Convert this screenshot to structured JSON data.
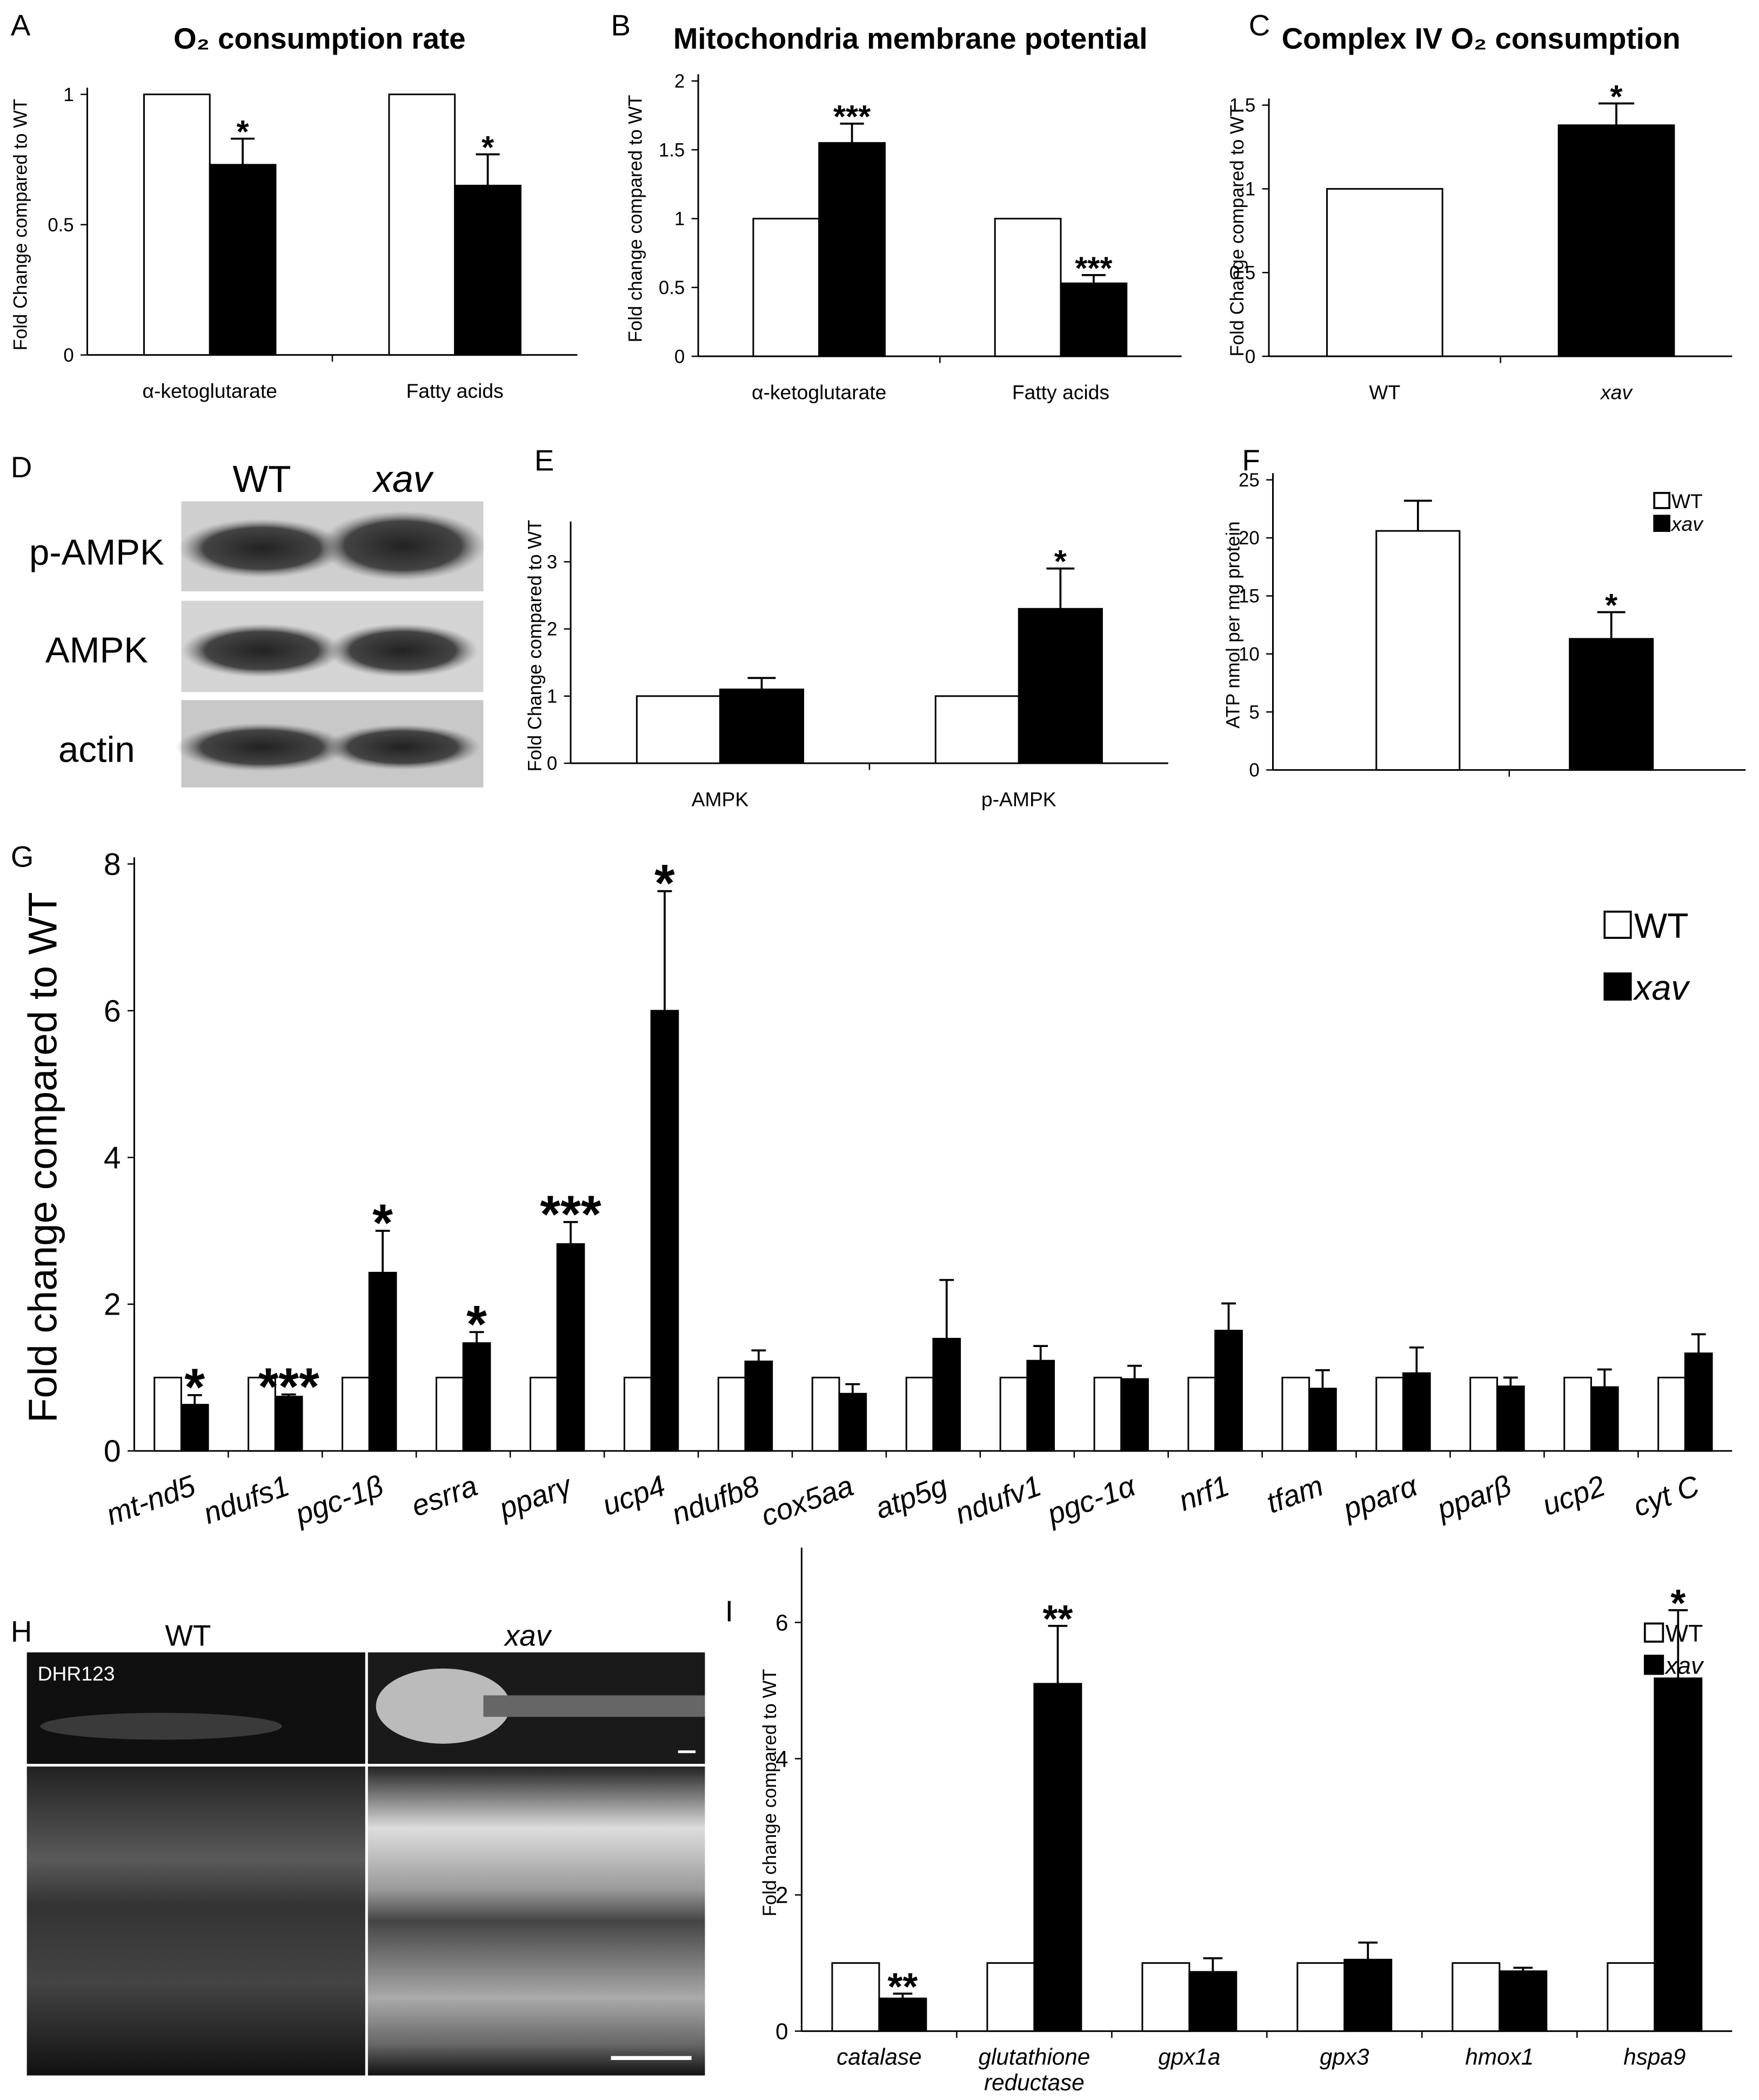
{
  "chart_data": [
    {
      "type": "bar",
      "panel": "A",
      "title": "O₂ consumption rate",
      "y_label": "Fold Change compared to WT",
      "categories": [
        "α-ketoglutarate",
        "Fatty acids"
      ],
      "series": [
        {
          "color": "#ffffff",
          "values": [
            1,
            1
          ]
        },
        {
          "color": "#000000",
          "values": [
            0.73,
            0.65
          ],
          "errors": [
            0.1,
            0.12
          ],
          "annotations": [
            "*",
            "*"
          ]
        }
      ],
      "ylim": [
        0,
        1
      ],
      "yticks": [
        0,
        0.5,
        1
      ]
    },
    {
      "type": "bar",
      "panel": "B",
      "title": "Mitochondria membrane potential",
      "y_label": "Fold change compared to WT",
      "categories": [
        "α-ketoglutarate",
        "Fatty acids"
      ],
      "series": [
        {
          "color": "#ffffff",
          "values": [
            1,
            1
          ]
        },
        {
          "color": "#000000",
          "values": [
            1.55,
            0.53
          ],
          "errors": [
            0.14,
            0.06
          ],
          "annotations": [
            "***",
            "***"
          ]
        }
      ],
      "ylim": [
        0,
        2
      ],
      "yticks": [
        0,
        0.5,
        1,
        1.5,
        2
      ]
    },
    {
      "type": "bar",
      "panel": "C",
      "title": "Complex IV O₂ consumption",
      "y_label": "Fold Change compared to WT",
      "categories": [
        "WT",
        "xav"
      ],
      "values": [
        1,
        1.38
      ],
      "colors": [
        "#ffffff",
        "#000000"
      ],
      "errors": [
        null,
        0.13
      ],
      "annotations": [
        null,
        "*"
      ],
      "ylim": [
        0,
        1.5
      ],
      "yticks": [
        0,
        0.5,
        1,
        1.5
      ]
    },
    {
      "type": "bar",
      "panel": "E",
      "y_label": "Fold Change compared to WT",
      "categories": [
        "AMPK",
        "p-AMPK"
      ],
      "series": [
        {
          "color": "#ffffff",
          "values": [
            1,
            1
          ]
        },
        {
          "color": "#000000",
          "values": [
            1.1,
            2.3
          ],
          "errors": [
            0.17,
            0.6
          ],
          "annotations": [
            null,
            "*"
          ]
        }
      ],
      "ylim": [
        0,
        3.5
      ],
      "yticks": [
        0,
        1,
        2,
        3
      ]
    },
    {
      "type": "bar",
      "panel": "F",
      "y_label": "ATP  nmol per mg protein",
      "categories": [
        null,
        null
      ],
      "series": [
        {
          "name": "WT",
          "color": "#ffffff",
          "values": [
            20.6,
            null
          ],
          "errors": [
            2.6,
            null
          ]
        },
        {
          "name": "xav",
          "color": "#000000",
          "values": [
            null,
            11.3
          ],
          "errors": [
            null,
            2.3
          ],
          "annotations": [
            null,
            "*"
          ]
        }
      ],
      "ylim": [
        0,
        25
      ],
      "yticks": [
        0,
        5,
        10,
        15,
        20,
        25
      ],
      "legend": "upper right"
    },
    {
      "type": "bar",
      "panel": "G",
      "y_label": "Fold change compared to WT",
      "categories": [
        "mt-nd5",
        "ndufs1",
        "pgc-1β",
        "esrra",
        "pparγ",
        "ucp4",
        "ndufb8",
        "cox5aa",
        "atp5g",
        "ndufv1",
        "pgc-1α",
        "nrf1",
        "tfam",
        "pparα",
        "pparβ",
        "ucp2",
        "cyt C"
      ],
      "series": [
        {
          "name": "WT",
          "color": "#ffffff",
          "values": [
            1,
            1,
            1,
            1,
            1,
            1,
            1,
            1,
            1,
            1,
            1,
            1,
            1,
            1,
            1,
            1,
            1
          ]
        },
        {
          "name": "xav",
          "color": "#000000",
          "values": [
            0.63,
            0.74,
            2.43,
            1.47,
            2.82,
            6.0,
            1.22,
            0.78,
            1.53,
            1.23,
            0.98,
            1.64,
            0.85,
            1.06,
            0.88,
            0.87,
            1.33
          ],
          "errors": [
            0.13,
            0.03,
            0.57,
            0.15,
            0.3,
            1.63,
            0.15,
            0.13,
            0.8,
            0.2,
            0.18,
            0.37,
            0.25,
            0.35,
            0.12,
            0.24,
            0.26
          ],
          "annotations": [
            "*",
            "***",
            "*",
            "*",
            "***",
            "*",
            null,
            null,
            null,
            null,
            null,
            null,
            null,
            null,
            null,
            null,
            null
          ]
        }
      ],
      "ylim": [
        0,
        8
      ],
      "yticks": [
        0,
        2,
        4,
        6,
        8
      ],
      "legend": "upper right"
    },
    {
      "type": "bar",
      "panel": "I",
      "y_label": "Fold change compared to WT",
      "categories": [
        "catalase",
        "glutathione reductase",
        "gpx1a",
        "gpx3",
        "hmox1",
        "hspa9"
      ],
      "series": [
        {
          "name": "WT",
          "color": "#ffffff",
          "values": [
            1,
            1,
            1,
            1,
            1,
            1
          ]
        },
        {
          "name": "xav",
          "color": "#000000",
          "values": [
            0.48,
            5.1,
            0.87,
            1.05,
            0.88,
            5.18
          ],
          "errors": [
            0.07,
            0.85,
            0.2,
            0.25,
            0.05,
            1.0
          ],
          "annotations": [
            "**",
            "**",
            null,
            null,
            null,
            "*"
          ]
        }
      ],
      "ylim": [
        0,
        7
      ],
      "yticks": [
        0,
        2,
        4,
        6
      ],
      "legend": "upper right"
    }
  ],
  "blot": {
    "panel": "D",
    "columns": [
      "WT",
      "xav"
    ],
    "rows": [
      "p-AMPK",
      "AMPK",
      "actin"
    ]
  },
  "micrograph": {
    "panel": "H",
    "columns": [
      "WT",
      "xav"
    ],
    "stain": "DHR123"
  }
}
